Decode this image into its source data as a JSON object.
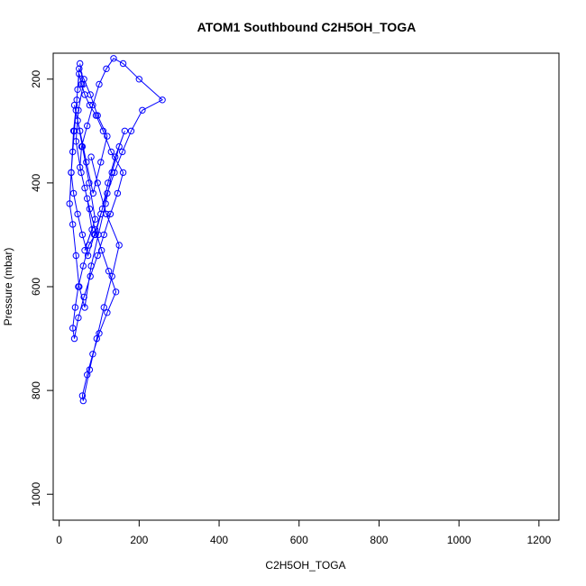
{
  "chart_data": {
    "type": "line",
    "title": "ATOM1 Southbound C2H5OH_TOGA",
    "xlabel": "C2H5OH_TOGA",
    "ylabel": "Pressure (mbar)",
    "xlim": [
      -15,
      1250
    ],
    "ylim": [
      1050,
      150
    ],
    "y_reversed": true,
    "x_ticks": [
      0,
      200,
      400,
      600,
      800,
      1000,
      1200
    ],
    "y_ticks": [
      200,
      400,
      600,
      800,
      1000
    ],
    "grid": false,
    "legend": "none",
    "series": [
      {
        "line_color": "#0000ff",
        "marker": "open-circle",
        "x": [
          52,
          60,
          48,
          42,
          55,
          70,
          82,
          64,
          90,
          75,
          58,
          46,
          38,
          52,
          68,
          85,
          104,
          120,
          96,
          78,
          62,
          50,
          44,
          36,
          30,
          26,
          34,
          42,
          50,
          64,
          80,
          98,
          116,
          132,
          150,
          164,
          140,
          122,
          108,
          90,
          74,
          60,
          48,
          40,
          34,
          38,
          48,
          62,
          78,
          96,
          112,
          128,
          146,
          160,
          130,
          110,
          92,
          76,
          64,
          56,
          50,
          46,
          42,
          38,
          34,
          30,
          36,
          46,
          58,
          72,
          88,
          104,
          120,
          138,
          158,
          180,
          208,
          258,
          200,
          160,
          136,
          118,
          100,
          84,
          70,
          56,
          52,
          64,
          76,
          90,
          106,
          124,
          142,
          120,
          100,
          84,
          70,
          58,
          60,
          76,
          94,
          112,
          132,
          150,
          118,
          96,
          80
        ],
        "y": [
          170,
          210,
          260,
          320,
          380,
          430,
          490,
          530,
          470,
          400,
          330,
          280,
          250,
          300,
          360,
          420,
          360,
          310,
          270,
          230,
          200,
          180,
          240,
          300,
          380,
          440,
          480,
          540,
          600,
          640,
          560,
          500,
          440,
          380,
          330,
          300,
          350,
          400,
          450,
          500,
          520,
          560,
          600,
          640,
          680,
          700,
          660,
          620,
          580,
          540,
          500,
          460,
          420,
          380,
          340,
          300,
          270,
          250,
          230,
          210,
          190,
          220,
          260,
          300,
          340,
          380,
          420,
          460,
          500,
          540,
          500,
          460,
          420,
          380,
          340,
          300,
          260,
          240,
          200,
          170,
          160,
          180,
          210,
          250,
          290,
          330,
          370,
          410,
          450,
          490,
          530,
          570,
          610,
          650,
          690,
          730,
          770,
          810,
          820,
          760,
          700,
          640,
          580,
          520,
          460,
          400,
          350
        ]
      }
    ]
  }
}
